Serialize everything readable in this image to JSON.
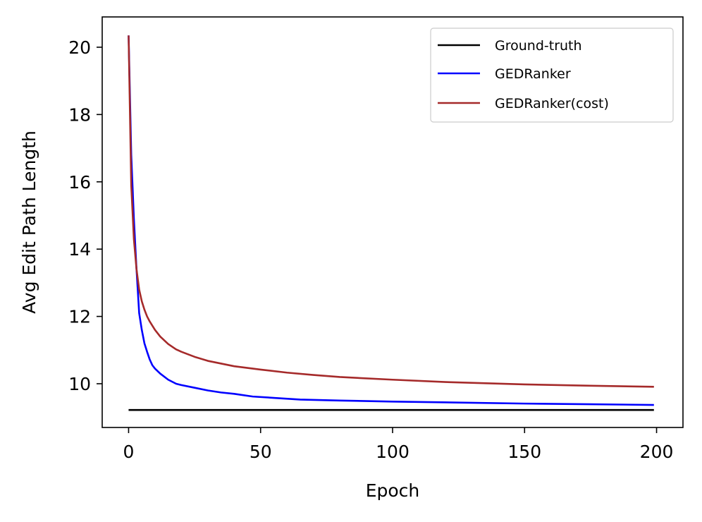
{
  "chart_data": {
    "type": "line",
    "title": "",
    "xlabel": "Epoch",
    "ylabel": "Avg Edit Path Length",
    "xlim": [
      -10,
      210
    ],
    "ylim": [
      8.7,
      20.9
    ],
    "xticks": [
      0,
      50,
      100,
      150,
      200
    ],
    "yticks": [
      10,
      12,
      14,
      16,
      18,
      20
    ],
    "grid": false,
    "legend_position": "top-right",
    "series": [
      {
        "name": "Ground-truth",
        "color": "#000000",
        "x": [
          0,
          199
        ],
        "y": [
          9.22,
          9.22
        ]
      },
      {
        "name": "GEDRanker",
        "color": "#0000ff",
        "x": [
          0,
          1,
          2,
          3,
          4,
          5,
          6,
          7,
          8,
          9,
          10,
          12,
          15,
          18,
          20,
          25,
          30,
          35,
          40,
          47,
          55,
          65,
          80,
          100,
          125,
          150,
          175,
          199
        ],
        "y": [
          20.35,
          16.8,
          14.9,
          13.4,
          12.1,
          11.6,
          11.2,
          10.95,
          10.72,
          10.55,
          10.45,
          10.3,
          10.12,
          10.0,
          9.96,
          9.88,
          9.8,
          9.74,
          9.7,
          9.62,
          9.58,
          9.53,
          9.5,
          9.47,
          9.44,
          9.41,
          9.39,
          9.37
        ]
      },
      {
        "name": "GEDRanker(cost)",
        "color": "#a52a2a",
        "x": [
          0,
          1,
          2,
          3,
          4,
          5,
          6,
          7,
          8,
          10,
          12,
          15,
          18,
          20,
          25,
          30,
          40,
          50,
          60,
          70,
          80,
          100,
          120,
          150,
          175,
          199
        ],
        "y": [
          20.35,
          15.9,
          14.3,
          13.4,
          12.8,
          12.45,
          12.2,
          12.0,
          11.85,
          11.6,
          11.4,
          11.18,
          11.02,
          10.95,
          10.8,
          10.68,
          10.52,
          10.42,
          10.33,
          10.26,
          10.2,
          10.12,
          10.05,
          9.98,
          9.94,
          9.91
        ]
      }
    ]
  }
}
